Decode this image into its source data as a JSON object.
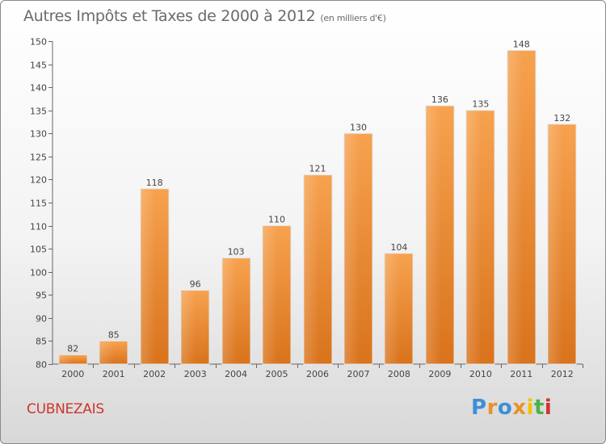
{
  "header": {
    "title": "Autres Impôts et Taxes de 2000 à 2012",
    "unit": "(en milliers d'€)"
  },
  "footer": {
    "commune": "CUBNEZAIS",
    "logo_letters": [
      "P",
      "r",
      "o",
      "x",
      "i",
      "t",
      "i"
    ],
    "logo_colors": [
      "#3b8fd9",
      "#e8912b",
      "#3b8fd9",
      "#e8912b",
      "#f2c200",
      "#4fb04a",
      "#d0342c"
    ]
  },
  "chart_data": {
    "type": "bar",
    "title": "Autres Impôts et Taxes de 2000 à 2012",
    "categories": [
      "2000",
      "2001",
      "2002",
      "2003",
      "2004",
      "2005",
      "2006",
      "2007",
      "2008",
      "2009",
      "2010",
      "2011",
      "2012"
    ],
    "values": [
      82,
      85,
      118,
      96,
      103,
      110,
      121,
      130,
      104,
      136,
      135,
      148,
      132
    ],
    "ylim": [
      80,
      150
    ],
    "yticks": [
      80,
      85,
      90,
      95,
      100,
      105,
      110,
      115,
      120,
      125,
      130,
      135,
      140,
      145,
      150
    ],
    "bar_color_top": "#f7a24f",
    "bar_color_bottom": "#d9731c",
    "grid": false
  }
}
